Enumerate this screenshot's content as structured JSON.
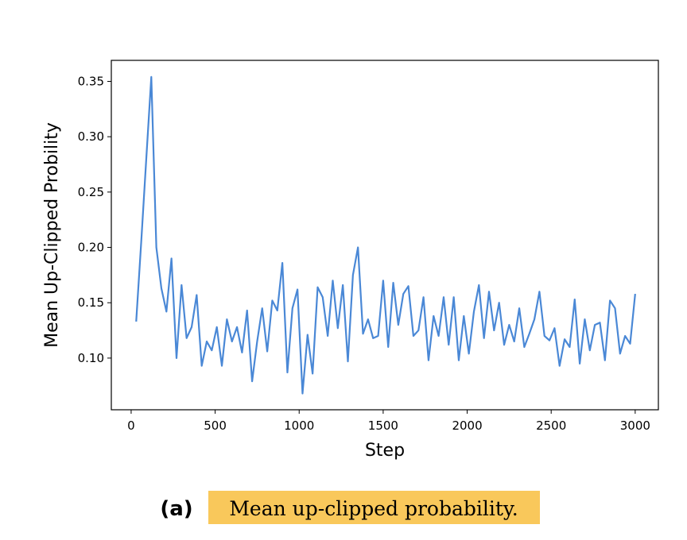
{
  "chart_data": {
    "type": "line",
    "xlabel": "Step",
    "ylabel": "Mean Up-Clipped Probility",
    "x": [
      30,
      60,
      90,
      120,
      150,
      180,
      210,
      240,
      270,
      300,
      330,
      360,
      390,
      420,
      450,
      480,
      510,
      540,
      570,
      600,
      630,
      660,
      690,
      720,
      750,
      780,
      810,
      840,
      870,
      900,
      930,
      960,
      990,
      1020,
      1050,
      1080,
      1110,
      1140,
      1170,
      1200,
      1230,
      1260,
      1290,
      1320,
      1350,
      1380,
      1410,
      1440,
      1470,
      1500,
      1530,
      1560,
      1590,
      1620,
      1650,
      1680,
      1710,
      1740,
      1770,
      1800,
      1830,
      1860,
      1890,
      1920,
      1950,
      1980,
      2010,
      2040,
      2070,
      2100,
      2130,
      2160,
      2190,
      2220,
      2250,
      2280,
      2310,
      2340,
      2370,
      2400,
      2430,
      2460,
      2490,
      2520,
      2550,
      2580,
      2610,
      2640,
      2670,
      2700,
      2730,
      2760,
      2790,
      2820,
      2850,
      2880,
      2910,
      2940,
      2970,
      3000
    ],
    "series": [
      {
        "name": "Mean up-clipped probability",
        "color": "#4a88d6",
        "values": [
          0.133,
          0.205,
          0.28,
          0.354,
          0.2,
          0.163,
          0.142,
          0.19,
          0.1,
          0.166,
          0.118,
          0.128,
          0.157,
          0.093,
          0.115,
          0.107,
          0.128,
          0.093,
          0.135,
          0.115,
          0.128,
          0.105,
          0.143,
          0.079,
          0.115,
          0.145,
          0.106,
          0.152,
          0.143,
          0.186,
          0.087,
          0.145,
          0.162,
          0.068,
          0.121,
          0.086,
          0.164,
          0.155,
          0.12,
          0.17,
          0.127,
          0.166,
          0.097,
          0.175,
          0.2,
          0.122,
          0.135,
          0.118,
          0.12,
          0.17,
          0.11,
          0.168,
          0.13,
          0.158,
          0.165,
          0.12,
          0.125,
          0.155,
          0.098,
          0.138,
          0.12,
          0.155,
          0.112,
          0.155,
          0.098,
          0.138,
          0.104,
          0.142,
          0.166,
          0.118,
          0.16,
          0.125,
          0.15,
          0.112,
          0.13,
          0.115,
          0.145,
          0.11,
          0.122,
          0.135,
          0.16,
          0.12,
          0.116,
          0.127,
          0.093,
          0.117,
          0.11,
          0.153,
          0.095,
          0.135,
          0.107,
          0.13,
          0.132,
          0.098,
          0.152,
          0.145,
          0.104,
          0.12,
          0.113,
          0.158
        ]
      }
    ],
    "xlim": [
      -118,
      3138
    ],
    "xticks": [
      0,
      500,
      1000,
      1500,
      2000,
      2500,
      3000
    ],
    "ylim": [
      0.0533,
      0.369
    ],
    "yticks": [
      {
        "value": 0.1,
        "label": "0.10"
      },
      {
        "value": 0.15,
        "label": "0.15"
      },
      {
        "value": 0.2,
        "label": "0.20"
      },
      {
        "value": 0.25,
        "label": "0.25"
      },
      {
        "value": 0.3,
        "label": "0.30"
      },
      {
        "value": 0.35,
        "label": "0.35"
      }
    ],
    "grid": false
  },
  "caption": {
    "label": "(a)",
    "text": "Mean up-clipped probability."
  }
}
